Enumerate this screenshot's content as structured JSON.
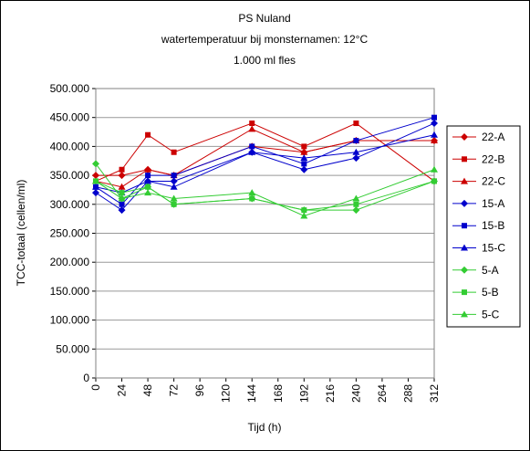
{
  "chart_data": {
    "type": "line",
    "title": "PS Nuland",
    "subtitle": [
      "watertemperatuur bij monsternamen: 12°C",
      "1.000 ml fles"
    ],
    "x_label": "Tijd (h)",
    "y_label": "TCC-totaal (cellen/ml)",
    "x": [
      0,
      24,
      48,
      72,
      144,
      192,
      240,
      312
    ],
    "xlim": [
      0,
      312
    ],
    "xticks": [
      0,
      24,
      48,
      72,
      96,
      120,
      144,
      168,
      192,
      216,
      240,
      264,
      288,
      312
    ],
    "ylim": [
      0,
      500000
    ],
    "yticks": [
      0,
      {
        "value": 50000,
        "label": "50.000"
      },
      {
        "value": 100000,
        "label": "100.000"
      },
      {
        "value": 150000,
        "label": "150.000"
      },
      {
        "value": 200000,
        "label": "200.000"
      },
      {
        "value": 250000,
        "label": "250.000"
      },
      {
        "value": 300000,
        "label": "300.000"
      },
      {
        "value": 350000,
        "label": "350.000"
      },
      {
        "value": 400000,
        "label": "400.000"
      },
      {
        "value": 450000,
        "label": "450.000"
      },
      {
        "value": 500000,
        "label": "500.000"
      }
    ],
    "grid": true,
    "legend": "right",
    "series": [
      {
        "name": "22-A",
        "color": "#cc0000",
        "marker": "diamond",
        "values": [
          350000,
          350000,
          360000,
          350000,
          400000,
          390000,
          410000,
          410000
        ]
      },
      {
        "name": "22-B",
        "color": "#cc0000",
        "marker": "square",
        "values": [
          340000,
          360000,
          420000,
          390000,
          440000,
          400000,
          440000,
          340000
        ]
      },
      {
        "name": "22-C",
        "color": "#cc0000",
        "marker": "triangle",
        "values": [
          340000,
          330000,
          360000,
          350000,
          430000,
          390000,
          410000,
          410000
        ]
      },
      {
        "name": "15-A",
        "color": "#0000cc",
        "marker": "diamond",
        "values": [
          320000,
          290000,
          340000,
          340000,
          390000,
          360000,
          380000,
          440000
        ]
      },
      {
        "name": "15-B",
        "color": "#0000cc",
        "marker": "square",
        "values": [
          330000,
          300000,
          350000,
          350000,
          400000,
          370000,
          410000,
          450000
        ]
      },
      {
        "name": "15-C",
        "color": "#0000cc",
        "marker": "triangle",
        "values": [
          330000,
          320000,
          340000,
          330000,
          390000,
          380000,
          390000,
          420000
        ]
      },
      {
        "name": "5-A",
        "color": "#33cc33",
        "marker": "diamond",
        "values": [
          370000,
          310000,
          330000,
          300000,
          310000,
          290000,
          290000,
          340000
        ]
      },
      {
        "name": "5-B",
        "color": "#33cc33",
        "marker": "square",
        "values": [
          340000,
          320000,
          330000,
          300000,
          310000,
          290000,
          300000,
          340000
        ]
      },
      {
        "name": "5-C",
        "color": "#33cc33",
        "marker": "triangle",
        "values": [
          340000,
          310000,
          320000,
          310000,
          320000,
          280000,
          310000,
          360000
        ]
      }
    ]
  }
}
